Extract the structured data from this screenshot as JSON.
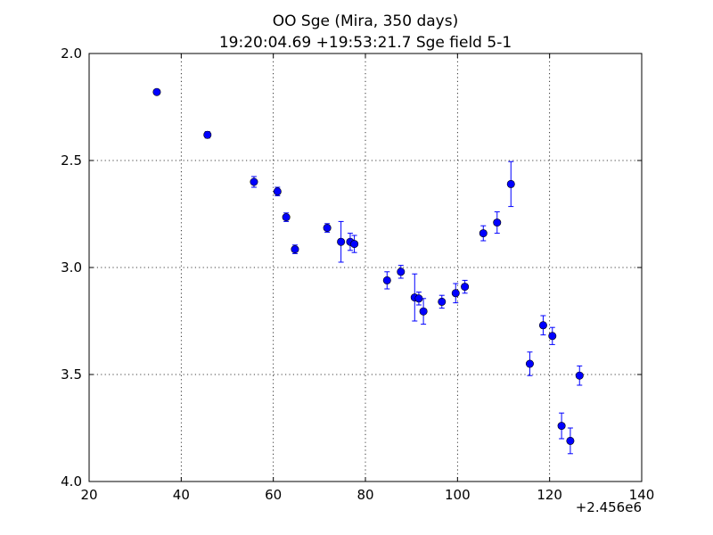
{
  "chart_data": {
    "type": "scatter",
    "title": "OO Sge (Mira, 350 days)",
    "subtitle": "19:20:04.69 +19:53:21.7 Sge field 5-1",
    "xlabel": "",
    "ylabel": "",
    "x_offset_label": "+2.456e6",
    "xlim": [
      20,
      140
    ],
    "ylim": [
      2.0,
      4.0
    ],
    "y_inverted": true,
    "grid": true,
    "marker_color": "#0000ff",
    "x_ticks": [
      20,
      40,
      60,
      80,
      100,
      120,
      140
    ],
    "x_tick_labels": [
      "20",
      "40",
      "60",
      "80",
      "100",
      "120",
      "140"
    ],
    "y_ticks": [
      2.0,
      2.5,
      3.0,
      3.5,
      4.0
    ],
    "y_tick_labels": [
      "2.0",
      "2.5",
      "3.0",
      "3.5",
      "4.0"
    ],
    "points": [
      {
        "x": 34.7,
        "y": 2.18,
        "err": 0.01
      },
      {
        "x": 45.7,
        "y": 2.38,
        "err": 0.015
      },
      {
        "x": 55.8,
        "y": 2.6,
        "err": 0.025
      },
      {
        "x": 60.9,
        "y": 2.645,
        "err": 0.02
      },
      {
        "x": 62.8,
        "y": 2.765,
        "err": 0.02
      },
      {
        "x": 64.7,
        "y": 2.915,
        "err": 0.02
      },
      {
        "x": 71.7,
        "y": 2.815,
        "err": 0.02
      },
      {
        "x": 74.7,
        "y": 2.88,
        "err": 0.095
      },
      {
        "x": 76.7,
        "y": 2.88,
        "err": 0.04
      },
      {
        "x": 77.6,
        "y": 2.89,
        "err": 0.04
      },
      {
        "x": 84.7,
        "y": 3.06,
        "err": 0.04
      },
      {
        "x": 87.7,
        "y": 3.02,
        "err": 0.03
      },
      {
        "x": 90.7,
        "y": 3.14,
        "err": 0.11
      },
      {
        "x": 91.6,
        "y": 3.145,
        "err": 0.03
      },
      {
        "x": 92.6,
        "y": 3.205,
        "err": 0.06
      },
      {
        "x": 96.6,
        "y": 3.16,
        "err": 0.03
      },
      {
        "x": 99.6,
        "y": 3.12,
        "err": 0.045
      },
      {
        "x": 101.6,
        "y": 3.09,
        "err": 0.03
      },
      {
        "x": 105.6,
        "y": 2.84,
        "err": 0.035
      },
      {
        "x": 108.6,
        "y": 2.79,
        "err": 0.05
      },
      {
        "x": 111.6,
        "y": 2.61,
        "err": 0.105
      },
      {
        "x": 115.7,
        "y": 3.45,
        "err": 0.055
      },
      {
        "x": 118.6,
        "y": 3.27,
        "err": 0.045
      },
      {
        "x": 120.6,
        "y": 3.32,
        "err": 0.04
      },
      {
        "x": 122.6,
        "y": 3.74,
        "err": 0.06
      },
      {
        "x": 124.5,
        "y": 3.81,
        "err": 0.06
      },
      {
        "x": 126.5,
        "y": 3.505,
        "err": 0.045
      }
    ]
  }
}
